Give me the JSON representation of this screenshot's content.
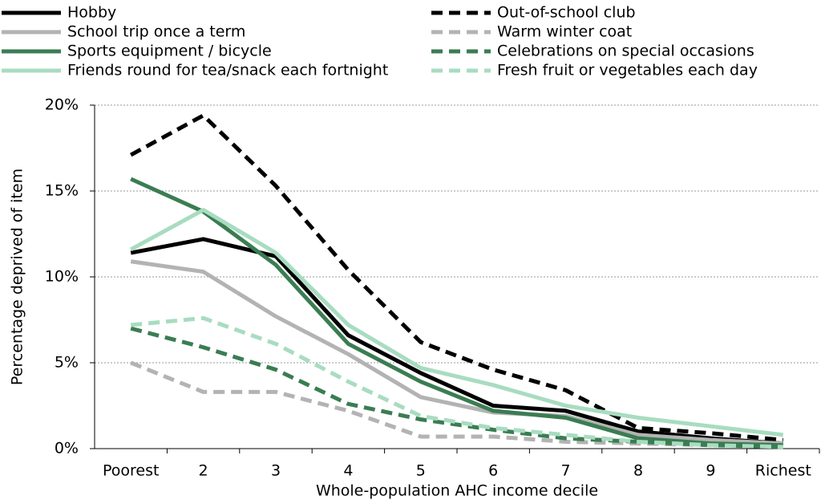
{
  "chart_data": {
    "type": "line",
    "xlabel": "Whole-population AHC income decile",
    "ylabel": "Percentage deprived of item",
    "categories": [
      "Poorest",
      "2",
      "3",
      "4",
      "5",
      "6",
      "7",
      "8",
      "9",
      "Richest"
    ],
    "ylim": [
      0,
      20
    ],
    "yticks": [
      {
        "value": 0,
        "label": "0%"
      },
      {
        "value": 5,
        "label": "5%"
      },
      {
        "value": 10,
        "label": "10%"
      },
      {
        "value": 15,
        "label": "15%"
      },
      {
        "value": 20,
        "label": "20%"
      }
    ],
    "grid": true,
    "legend": "top",
    "series": [
      {
        "name": "Hobby",
        "color": "#000000",
        "dashed": false,
        "values": [
          11.4,
          12.2,
          11.2,
          6.6,
          4.4,
          2.5,
          2.2,
          1.0,
          0.6,
          0.3
        ]
      },
      {
        "name": "Out-of-school club",
        "color": "#000000",
        "dashed": true,
        "values": [
          17.1,
          19.4,
          15.3,
          10.4,
          6.2,
          4.6,
          3.4,
          1.2,
          0.9,
          0.5
        ]
      },
      {
        "name": "School trip once a term",
        "color": "#b3b3b3",
        "dashed": false,
        "values": [
          10.9,
          10.3,
          7.7,
          5.5,
          3.0,
          2.1,
          1.9,
          0.8,
          0.5,
          0.3
        ]
      },
      {
        "name": "Warm winter coat",
        "color": "#b3b3b3",
        "dashed": true,
        "values": [
          5.0,
          3.3,
          3.3,
          2.2,
          0.7,
          0.7,
          0.4,
          0.3,
          0.2,
          0.2
        ]
      },
      {
        "name": "Sports equipment / bicycle",
        "color": "#3a7d52",
        "dashed": false,
        "values": [
          15.7,
          13.8,
          10.7,
          6.1,
          3.9,
          2.2,
          1.8,
          0.6,
          0.3,
          0.2
        ]
      },
      {
        "name": "Celebrations on special occasions",
        "color": "#3a7d52",
        "dashed": true,
        "values": [
          7.0,
          5.9,
          4.6,
          2.6,
          1.7,
          1.1,
          0.6,
          0.4,
          0.2,
          0.1
        ]
      },
      {
        "name": "Friends round for tea/snack each fortnight",
        "color": "#a8dcc0",
        "dashed": false,
        "values": [
          11.6,
          13.9,
          11.4,
          7.2,
          4.7,
          3.7,
          2.5,
          1.8,
          1.3,
          0.8
        ]
      },
      {
        "name": "Fresh fruit or vegetables each day",
        "color": "#a8dcc0",
        "dashed": true,
        "values": [
          7.2,
          7.6,
          6.1,
          3.9,
          1.9,
          1.2,
          0.8,
          0.4,
          0.2,
          0.1
        ]
      }
    ]
  }
}
